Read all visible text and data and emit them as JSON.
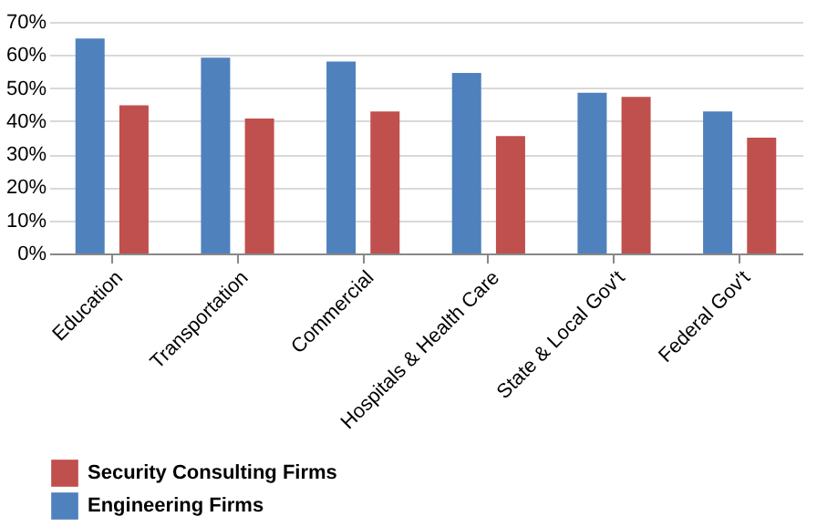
{
  "chart_data": {
    "type": "bar",
    "categories": [
      "Education",
      "Transportation",
      "Commercial",
      "Hospitals & Health Care",
      "State & Local Gov't",
      "Federal Gov't"
    ],
    "series": [
      {
        "name": "Engineering Firms",
        "color": "#4f81bd",
        "values": [
          65.0,
          59.2,
          58.0,
          54.6,
          48.6,
          42.9
        ]
      },
      {
        "name": "Security Consulting Firms",
        "color": "#c0504d",
        "values": [
          44.8,
          40.8,
          42.9,
          35.5,
          47.3,
          35.0
        ]
      }
    ],
    "ylim": [
      0,
      70
    ],
    "yticks": [
      {
        "value": 0,
        "label": "0%"
      },
      {
        "value": 10,
        "label": "10%"
      },
      {
        "value": 20,
        "label": "20%"
      },
      {
        "value": 30,
        "label": "30%"
      },
      {
        "value": 40,
        "label": "40%"
      },
      {
        "value": 50,
        "label": "50%"
      },
      {
        "value": 60,
        "label": "60%"
      },
      {
        "value": 70,
        "label": "70%"
      }
    ],
    "grid": "y",
    "legend": "bottom"
  }
}
